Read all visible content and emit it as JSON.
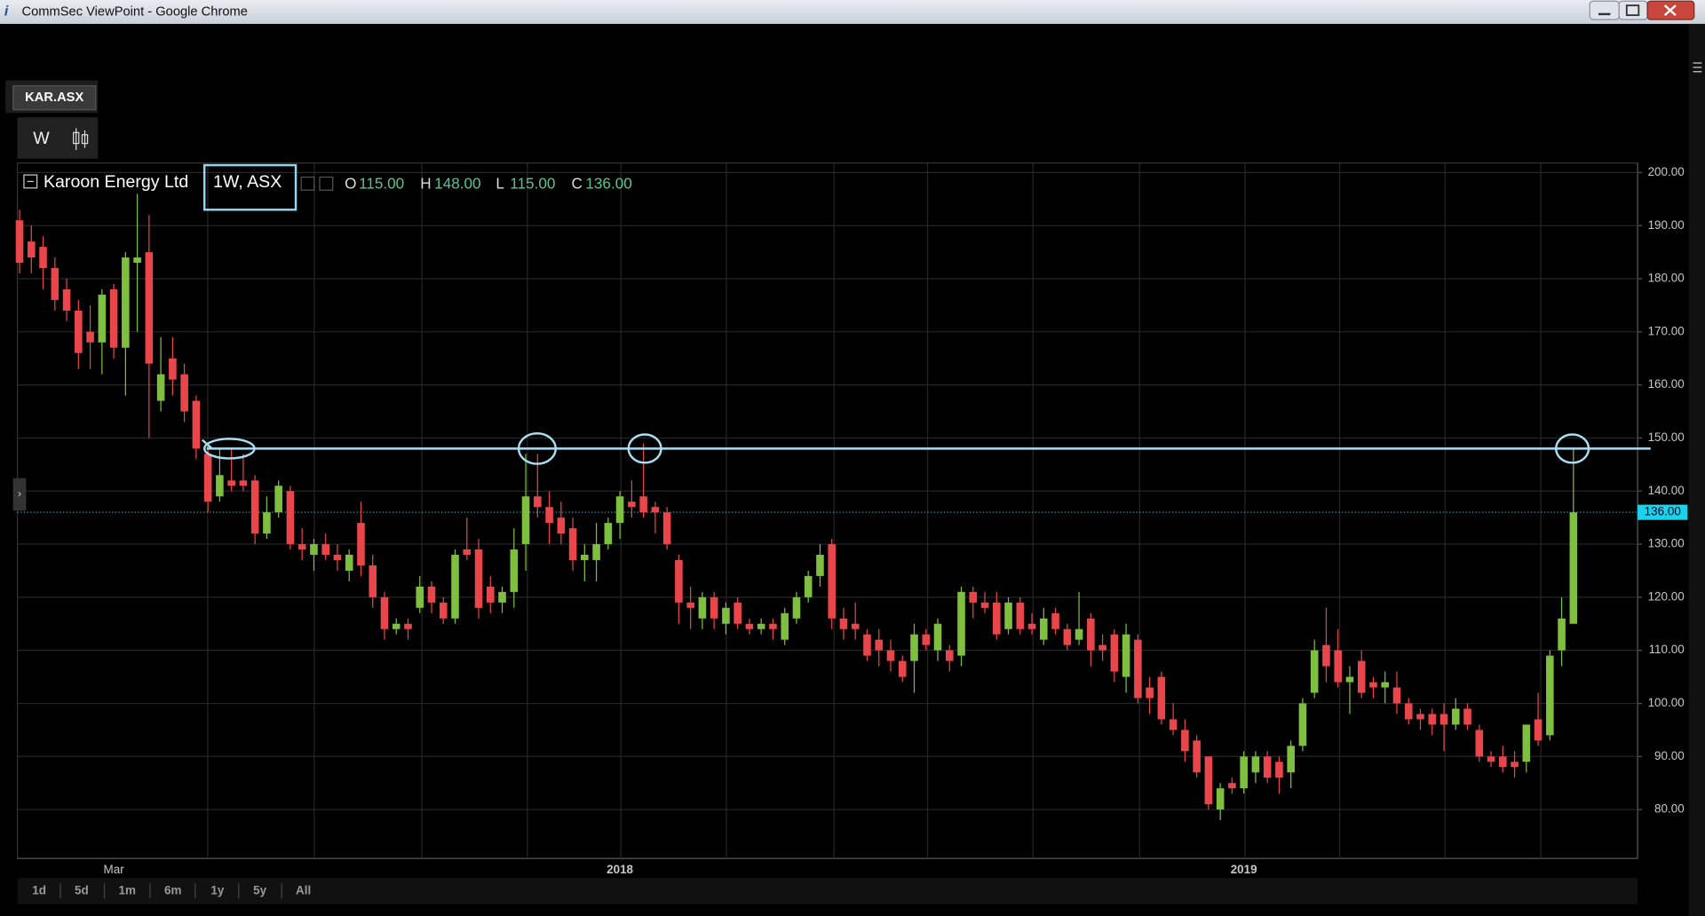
{
  "window_title": "CommSec ViewPoint - Google Chrome",
  "tab": "KAR.ASX",
  "interval_button": "W",
  "periods": [
    "1d",
    "5d",
    "1m",
    "6m",
    "1y",
    "5y",
    "All"
  ],
  "chart_data": {
    "type": "candlestick",
    "title": "Karoon Energy Ltd",
    "subtitle": "1W, ASX",
    "ohlc_header": [
      {
        "label": "O",
        "value": "115.00"
      },
      {
        "label": "H",
        "value": "148.00"
      },
      {
        "label": "L",
        "value": "115.00"
      },
      {
        "label": "C",
        "value": "136.00"
      }
    ],
    "up_color": "#7fbf3f",
    "down_color": "#e8464a",
    "grid": true,
    "ylim": [
      70.8,
      201.8
    ],
    "yticks": [
      {
        "value": 200,
        "label": "200.00"
      },
      {
        "value": 190,
        "label": "190.00"
      },
      {
        "value": 180,
        "label": "180.00"
      },
      {
        "value": 170,
        "label": "170.00"
      },
      {
        "value": 160,
        "label": "160.00"
      },
      {
        "value": 150,
        "label": "150.00"
      },
      {
        "value": 140,
        "label": "140.00"
      },
      {
        "value": 130,
        "label": "130.00"
      },
      {
        "value": 120,
        "label": "120.00"
      },
      {
        "value": 110,
        "label": "110.00"
      },
      {
        "value": 100,
        "label": "100.00"
      },
      {
        "value": 90,
        "label": "90.00"
      },
      {
        "value": 80,
        "label": "80.00"
      }
    ],
    "last_price": {
      "value": 136,
      "label": "136.00"
    },
    "resistance": 148,
    "categories": [
      null,
      null,
      null,
      null,
      null,
      null,
      null,
      null,
      "Mar",
      null,
      null,
      null,
      null,
      null,
      null,
      null,
      null,
      null,
      null,
      null,
      null,
      null,
      null,
      null,
      null,
      null,
      null,
      null,
      null,
      null,
      null,
      null,
      null,
      null,
      null,
      null,
      null,
      null,
      null,
      null,
      null,
      null,
      null,
      null,
      null,
      null,
      null,
      null,
      null,
      null,
      null,
      "2018",
      null,
      null,
      null,
      null,
      null,
      null,
      null,
      null,
      null,
      null,
      null,
      null,
      null,
      null,
      null,
      null,
      null,
      null,
      null,
      null,
      null,
      null,
      null,
      null,
      null,
      null,
      null,
      null,
      null,
      null,
      null,
      null,
      null,
      null,
      null,
      null,
      null,
      null,
      null,
      null,
      null,
      null,
      null,
      null,
      null,
      null,
      null,
      null,
      null,
      null,
      null,
      null,
      "2019",
      null,
      null,
      null,
      null,
      null,
      null,
      null,
      null,
      null,
      null,
      null,
      null,
      null,
      null,
      null,
      null,
      null,
      null,
      null,
      null,
      null,
      null,
      null,
      null,
      null,
      null,
      null,
      null
    ],
    "open": [
      191,
      187,
      186,
      182,
      178,
      174,
      170,
      168,
      178,
      167,
      183,
      185,
      157,
      165,
      162,
      157,
      147,
      139,
      142,
      142,
      142,
      132,
      136,
      140,
      130,
      128,
      130,
      128,
      125,
      134,
      126,
      120,
      114,
      115,
      118,
      122,
      119,
      116,
      129,
      129,
      122,
      119,
      121,
      130,
      139,
      137,
      135,
      133,
      127,
      127,
      130,
      134,
      138,
      139,
      137,
      136,
      127,
      119,
      116,
      120,
      115,
      119,
      115,
      114,
      115,
      112,
      116,
      120,
      124,
      130,
      116,
      115,
      113,
      112,
      110,
      108,
      108,
      113,
      110,
      110,
      109,
      121,
      119,
      119,
      114,
      119,
      115,
      112,
      117,
      114,
      112,
      116,
      111,
      113,
      105,
      112,
      103,
      105,
      97,
      95,
      93,
      90,
      80,
      85,
      84,
      87,
      90,
      89,
      87,
      92,
      102,
      111,
      110,
      104,
      108,
      104,
      103,
      103,
      100,
      98,
      98,
      98,
      96,
      99,
      95,
      90,
      90,
      89,
      89,
      97,
      94,
      110,
      115
    ],
    "high": [
      193,
      190,
      188,
      184,
      180,
      176,
      175,
      178,
      179,
      185,
      196,
      192,
      169,
      169,
      164,
      158,
      149,
      148,
      148,
      147,
      143,
      139,
      142,
      141,
      133,
      131,
      132,
      130,
      129,
      138,
      128,
      121,
      116,
      116,
      124,
      123,
      120,
      129,
      135,
      131,
      124,
      122,
      133,
      147,
      147,
      140,
      138,
      135,
      130,
      134,
      135,
      140,
      142,
      149,
      138,
      137,
      128,
      122,
      121,
      121,
      119,
      120,
      116,
      116,
      116,
      118,
      121,
      125,
      130,
      131,
      118,
      119,
      114,
      114,
      112,
      109,
      115,
      114,
      116,
      111,
      122,
      122,
      121,
      121,
      120,
      120,
      117,
      118,
      118,
      115,
      121,
      117,
      113,
      114,
      115,
      113,
      105,
      106,
      100,
      97,
      94,
      90,
      85,
      86,
      91,
      91,
      91,
      90,
      93,
      101,
      112,
      118,
      114,
      107,
      110,
      105,
      106,
      106,
      101,
      99,
      99,
      100,
      101,
      100,
      96,
      91,
      92,
      91,
      96,
      102,
      110,
      120,
      148
    ],
    "low": [
      181,
      181,
      178,
      174,
      172,
      163,
      163,
      162,
      165,
      158,
      170,
      150,
      155,
      158,
      153,
      146,
      136,
      138,
      140,
      140,
      130,
      131,
      135,
      129,
      127,
      125,
      127,
      125,
      123,
      124,
      118,
      112,
      113,
      112,
      117,
      117,
      115,
      115,
      127,
      116,
      117,
      117,
      118,
      125,
      135,
      130,
      130,
      125,
      123,
      123,
      129,
      131,
      135,
      135,
      132,
      129,
      115,
      114,
      114,
      114,
      113,
      114,
      113,
      113,
      112,
      111,
      115,
      119,
      122,
      114,
      112,
      112,
      108,
      107,
      106,
      104,
      102,
      110,
      108,
      106,
      107,
      116,
      117,
      112,
      113,
      113,
      113,
      111,
      113,
      110,
      111,
      107,
      108,
      104,
      102,
      100,
      98,
      96,
      94,
      89,
      86,
      80,
      78,
      83,
      83,
      85,
      85,
      83,
      84,
      91,
      101,
      104,
      103,
      98,
      101,
      101,
      100,
      98,
      96,
      95,
      94,
      91,
      95,
      95,
      89,
      88,
      87,
      86,
      87,
      92,
      93,
      107,
      115
    ],
    "close": [
      183,
      184,
      182,
      176,
      174,
      166,
      168,
      177,
      167,
      184,
      184,
      164,
      162,
      161,
      155,
      148,
      138,
      143,
      141,
      141,
      132,
      136,
      141,
      130,
      129,
      130,
      128,
      127,
      128,
      126,
      120,
      114,
      115,
      114,
      122,
      119,
      116,
      128,
      128,
      118,
      119,
      121,
      129,
      139,
      137,
      134,
      132,
      127,
      128,
      130,
      134,
      139,
      137,
      136,
      136,
      130,
      119,
      118,
      120,
      116,
      118,
      115,
      114,
      115,
      114,
      117,
      120,
      124,
      128,
      116,
      114,
      114,
      109,
      110,
      108,
      105,
      113,
      111,
      115,
      108,
      121,
      119,
      118,
      113,
      119,
      114,
      114,
      116,
      114,
      111,
      114,
      110,
      110,
      106,
      113,
      101,
      101,
      97,
      95,
      91,
      87,
      81,
      84,
      84,
      90,
      90,
      86,
      86,
      92,
      100,
      110,
      107,
      104,
      105,
      102,
      103,
      104,
      100,
      97,
      97,
      96,
      96,
      99,
      96,
      90,
      89,
      88,
      88,
      96,
      93,
      109,
      116,
      136
    ]
  }
}
